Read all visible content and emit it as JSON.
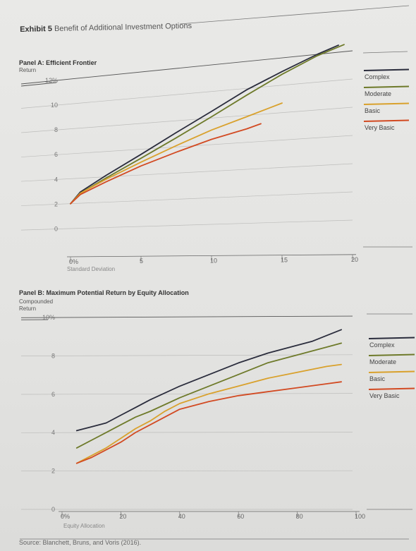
{
  "exhibit": {
    "label": "Exhibit 5",
    "title": "Benefit of Additional Investment Options"
  },
  "source": "Source: Blanchett, Bruns, and Voris (2016).",
  "colors": {
    "Complex": "#2a2c3c",
    "Moderate": "#6e7a2a",
    "Basic": "#d9a12c",
    "Very Basic": "#d24a22"
  },
  "chart_data": [
    {
      "type": "line",
      "title": "Panel A: Efficient Frontier",
      "ylabel": "Return",
      "xlabel": "Standard Deviation",
      "xlim": [
        0,
        20
      ],
      "ylim": [
        0,
        12
      ],
      "xticks": [
        "0%",
        "5",
        "10",
        "15",
        "20"
      ],
      "yticks": [
        "0",
        "2",
        "4",
        "6",
        "8",
        "10",
        "12%"
      ],
      "legend": "right",
      "series": [
        {
          "name": "Complex",
          "x": [
            0,
            0.7,
            2.5,
            5,
            7.5,
            10,
            12.5,
            15,
            17.5,
            19
          ],
          "y": [
            2.0,
            2.9,
            4.1,
            5.6,
            7.1,
            8.5,
            9.9,
            11.0,
            12.0,
            12.5
          ]
        },
        {
          "name": "Moderate",
          "x": [
            0,
            0.7,
            2.5,
            5,
            7.5,
            10,
            12.5,
            15,
            17.5,
            19.4
          ],
          "y": [
            2.0,
            2.8,
            3.9,
            5.3,
            6.7,
            8.1,
            9.5,
            10.8,
            11.9,
            12.5
          ]
        },
        {
          "name": "Basic",
          "x": [
            0,
            0.7,
            2.5,
            5,
            7.5,
            10,
            12.5,
            15
          ],
          "y": [
            2.0,
            2.8,
            3.8,
            5.0,
            6.1,
            7.1,
            7.9,
            8.7
          ]
        },
        {
          "name": "Very Basic",
          "x": [
            0,
            0.7,
            2.5,
            5,
            7.5,
            10,
            12.5,
            13.5
          ],
          "y": [
            2.0,
            2.7,
            3.6,
            4.7,
            5.6,
            6.4,
            7.0,
            7.3
          ]
        }
      ]
    },
    {
      "type": "line",
      "title": "Panel B: Maximum Potential Return by Equity Allocation",
      "ylabel": "Compounded Return",
      "xlabel": "Equity Allocation",
      "xlim": [
        0,
        100
      ],
      "ylim": [
        0,
        10
      ],
      "xticks": [
        "0%",
        "20",
        "40",
        "60",
        "80",
        "100"
      ],
      "yticks": [
        "0",
        "2",
        "4",
        "6",
        "8",
        "10%"
      ],
      "legend": "right",
      "series": [
        {
          "name": "Complex",
          "x": [
            5,
            10,
            15,
            20,
            25,
            30,
            40,
            50,
            60,
            70,
            80,
            85,
            90,
            95
          ],
          "y": [
            4.1,
            4.3,
            4.5,
            4.9,
            5.3,
            5.7,
            6.4,
            7.0,
            7.6,
            8.1,
            8.5,
            8.7,
            9.0,
            9.3
          ]
        },
        {
          "name": "Moderate",
          "x": [
            5,
            10,
            15,
            20,
            25,
            30,
            40,
            50,
            60,
            70,
            80,
            90,
            95
          ],
          "y": [
            3.2,
            3.6,
            4.0,
            4.4,
            4.8,
            5.1,
            5.8,
            6.4,
            7.0,
            7.6,
            8.0,
            8.4,
            8.6
          ]
        },
        {
          "name": "Basic",
          "x": [
            5,
            10,
            15,
            20,
            25,
            30,
            35,
            40,
            50,
            60,
            70,
            80,
            90,
            95
          ],
          "y": [
            2.4,
            2.8,
            3.2,
            3.7,
            4.2,
            4.6,
            5.1,
            5.5,
            6.0,
            6.4,
            6.8,
            7.1,
            7.4,
            7.5
          ]
        },
        {
          "name": "Very Basic",
          "x": [
            5,
            10,
            15,
            20,
            25,
            30,
            35,
            40,
            50,
            60,
            70,
            80,
            90,
            95
          ],
          "y": [
            2.4,
            2.7,
            3.1,
            3.5,
            4.0,
            4.4,
            4.8,
            5.2,
            5.6,
            5.9,
            6.1,
            6.3,
            6.5,
            6.6
          ]
        }
      ]
    }
  ]
}
